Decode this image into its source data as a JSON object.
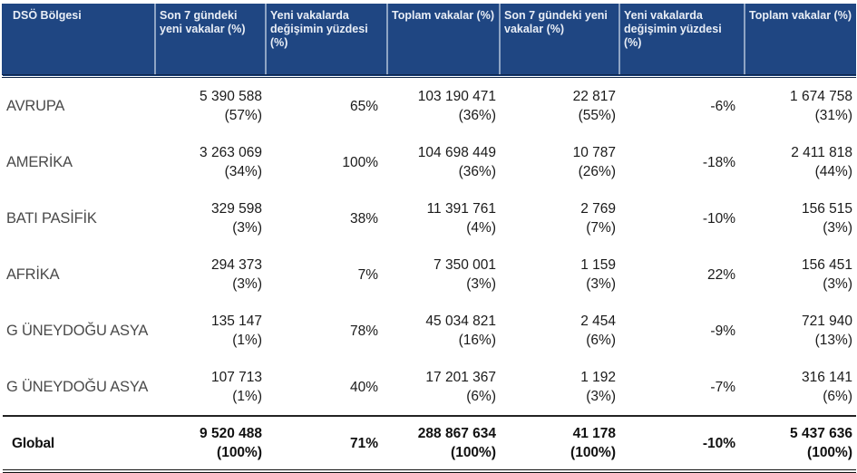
{
  "header": {
    "columns": [
      "DSÖ Bölgesi",
      "Son 7 gündeki yeni vakalar (%)",
      "Yeni vakalarda değişimin yüzdesi (%)",
      "Toplam vakalar (%)",
      "Son 7 gündeki yeni vakalar (%)",
      "Yeni vakalarda değişimin yüzdesi (%)",
      "Toplam vakalar (%)"
    ]
  },
  "rows": [
    {
      "region": "AVRUPA",
      "new7": "5 390 588",
      "new7_pct": "(57%)",
      "change": "65%",
      "total": "103 190 471",
      "total_pct": "(36%)",
      "new7b": "22 817",
      "new7b_pct": "(55%)",
      "changeb": "-6%",
      "totalb": "1 674 758",
      "totalb_pct": "(31%)"
    },
    {
      "region": "AMERİKA",
      "new7": "3 263 069",
      "new7_pct": "(34%)",
      "change": "100%",
      "total": "104 698 449",
      "total_pct": "(36%)",
      "new7b": "10 787",
      "new7b_pct": "(26%)",
      "changeb": "-18%",
      "totalb": "2 411 818",
      "totalb_pct": "(44%)"
    },
    {
      "region": "BATI PASİFİK",
      "new7": "329 598",
      "new7_pct": "(3%)",
      "change": "38%",
      "total": "11 391 761",
      "total_pct": "(4%)",
      "new7b": "2 769",
      "new7b_pct": "(7%)",
      "changeb": "-10%",
      "totalb": "156 515",
      "totalb_pct": "(3%)"
    },
    {
      "region": "AFRİKA",
      "new7": "294 373",
      "new7_pct": "(3%)",
      "change": "7%",
      "total": "7 350 001",
      "total_pct": "(3%)",
      "new7b": "1 159",
      "new7b_pct": "(3%)",
      "changeb": "22%",
      "totalb": "156 451",
      "totalb_pct": "(3%)"
    },
    {
      "region": "G ÜNEYDOĞU ASYA",
      "new7": "135 147",
      "new7_pct": "(1%)",
      "change": "78%",
      "total": "45 034 821",
      "total_pct": "(16%)",
      "new7b": "2 454",
      "new7b_pct": "(6%)",
      "changeb": "-9%",
      "totalb": "721 940",
      "totalb_pct": "(13%)"
    },
    {
      "region": "G ÜNEYDOĞU ASYA",
      "new7": "107 713",
      "new7_pct": "(1%)",
      "change": "40%",
      "total": "17 201 367",
      "total_pct": "(6%)",
      "new7b": "1 192",
      "new7b_pct": "(3%)",
      "changeb": "-7%",
      "totalb": "316 141",
      "totalb_pct": "(6%)"
    }
  ],
  "global": {
    "region": "Global",
    "new7": "9 520 488",
    "new7_pct": "(100%)",
    "change": "71%",
    "total": "288 867 634",
    "total_pct": "(100%)",
    "new7b": "41 178",
    "new7b_pct": "(100%)",
    "changeb": "-10%",
    "totalb": "5 437 636",
    "totalb_pct": "(100%)"
  },
  "colors": {
    "header_bg": "#1f4682",
    "header_text": "#e9eef6"
  }
}
